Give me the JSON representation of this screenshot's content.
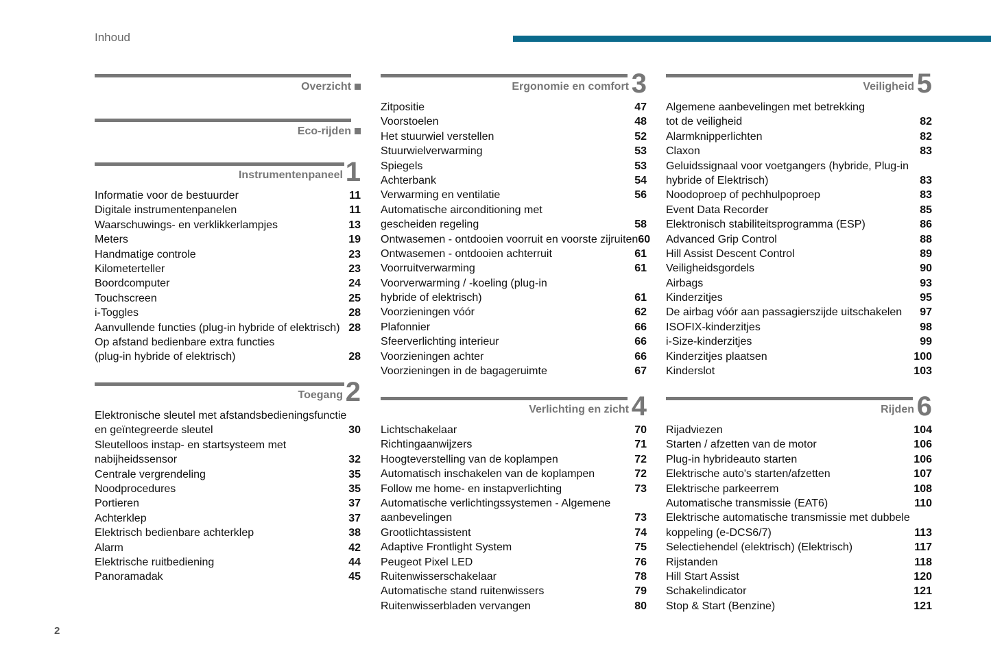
{
  "header": {
    "title": "Inhoud",
    "accent": "#0b6a8c"
  },
  "page_number": "2",
  "sections": [
    {
      "id": "overzicht",
      "title": "Overzicht",
      "number": "",
      "items": []
    },
    {
      "id": "eco",
      "title": "Eco-rijden",
      "number": "",
      "items": []
    },
    {
      "id": "instr",
      "title": "Instrumentenpaneel",
      "number": "1",
      "items": [
        {
          "text": "Informatie voor de bestuurder",
          "page": "11"
        },
        {
          "text": "Digitale instrumentenpanelen",
          "page": "11"
        },
        {
          "text": "Waarschuwings- en verklikkerlampjes",
          "page": "13"
        },
        {
          "text": "Meters",
          "page": "19"
        },
        {
          "text": "Handmatige controle",
          "page": "23"
        },
        {
          "text": "Kilometerteller",
          "page": "23"
        },
        {
          "text": "Boordcomputer",
          "page": "24"
        },
        {
          "text": "Touchscreen",
          "page": "25"
        },
        {
          "text": "i-Toggles",
          "page": "28"
        },
        {
          "text": "Aanvullende functies (plug-in hybride of elektrisch)",
          "page": "28"
        },
        {
          "text": "Op afstand bedienbare extra functies",
          "text2": "(plug-in hybride of elektrisch)",
          "page": "28"
        }
      ]
    },
    {
      "id": "toegang",
      "title": "Toegang",
      "number": "2",
      "items": [
        {
          "text": "Elektronische sleutel met afstandsbedieningsfunctie",
          "text2": "en geïntegreerde sleutel",
          "page": "30"
        },
        {
          "text": "Sleutelloos instap- en startsysteem met",
          "text2": "nabijheidssensor",
          "page": "32"
        },
        {
          "text": "Centrale vergrendeling",
          "page": "35"
        },
        {
          "text": "Noodprocedures",
          "page": "35"
        },
        {
          "text": "Portieren",
          "page": "37"
        },
        {
          "text": "Achterklep",
          "page": "37"
        },
        {
          "text": "Elektrisch bedienbare achterklep",
          "page": "38"
        },
        {
          "text": "Alarm",
          "page": "42"
        },
        {
          "text": "Elektrische ruitbediening",
          "page": "44"
        },
        {
          "text": "Panoramadak",
          "page": "45"
        }
      ]
    },
    {
      "id": "ergo",
      "title": "Ergonomie en comfort",
      "number": "3",
      "items": [
        {
          "text": "Zitpositie",
          "page": "47"
        },
        {
          "text": "Voorstoelen",
          "page": "48"
        },
        {
          "text": "Het stuurwiel verstellen",
          "page": "52"
        },
        {
          "text": "Stuurwielverwarming",
          "page": "53"
        },
        {
          "text": "Spiegels",
          "page": "53"
        },
        {
          "text": "Achterbank",
          "page": "54"
        },
        {
          "text": "Verwarming en ventilatie",
          "page": "56"
        },
        {
          "text": "Automatische airconditioning met",
          "text2": "gescheiden regeling",
          "page": "58"
        },
        {
          "text": "Ontwasemen - ontdooien voorruit en voorste zijruiten",
          "page": "60"
        },
        {
          "text": "Ontwasemen - ontdooien achterruit",
          "page": "61"
        },
        {
          "text": "Voorruitverwarming",
          "page": "61"
        },
        {
          "text": "Voorverwarming / -koeling (plug-in",
          "text2": "hybride of elektrisch)",
          "page": "61"
        },
        {
          "text": "Voorzieningen vóór",
          "page": "62"
        },
        {
          "text": "Plafonnier",
          "page": "66"
        },
        {
          "text": "Sfeerverlichting interieur",
          "page": "66"
        },
        {
          "text": "Voorzieningen achter",
          "page": "66"
        },
        {
          "text": "Voorzieningen in de bagageruimte",
          "page": "67"
        }
      ]
    },
    {
      "id": "verl",
      "title": "Verlichting en zicht",
      "number": "4",
      "items": [
        {
          "text": "Lichtschakelaar",
          "page": "70"
        },
        {
          "text": "Richtingaanwijzers",
          "page": "71"
        },
        {
          "text": "Hoogteverstelling van de koplampen",
          "page": "72"
        },
        {
          "text": "Automatisch inschakelen van de koplampen",
          "page": "72"
        },
        {
          "text": "Follow me home- en instapverlichting",
          "page": "73"
        },
        {
          "text": "Automatische verlichtingssystemen - Algemene",
          "text2": "aanbevelingen",
          "page": "73"
        },
        {
          "text": "Grootlichtassistent",
          "page": "74"
        },
        {
          "text": "Adaptive Frontlight System",
          "page": "75"
        },
        {
          "text": "Peugeot Pixel LED",
          "page": "76"
        },
        {
          "text": "Ruitenwisserschakelaar",
          "page": "78"
        },
        {
          "text": "Automatische stand ruitenwissers",
          "page": "79"
        },
        {
          "text": "Ruitenwisserbladen vervangen",
          "page": "80"
        }
      ]
    },
    {
      "id": "veil",
      "title": "Veiligheid",
      "number": "5",
      "items": [
        {
          "text": "Algemene aanbevelingen met betrekking",
          "text2": "tot de veiligheid",
          "page": "82"
        },
        {
          "text": "Alarmknipperlichten",
          "page": "82"
        },
        {
          "text": "Claxon",
          "page": "83"
        },
        {
          "text": "Geluidssignaal voor voetgangers (hybride, Plug-in",
          "text2": "hybride of Elektrisch)",
          "page": "83"
        },
        {
          "text": "Noodoproep of pechhulpoproep",
          "page": "83"
        },
        {
          "text": "Event Data Recorder",
          "page": "85"
        },
        {
          "text": "Elektronisch stabiliteitsprogramma (ESP)",
          "page": "86"
        },
        {
          "text": "Advanced Grip Control",
          "page": "88"
        },
        {
          "text": "Hill Assist Descent Control",
          "page": "89"
        },
        {
          "text": "Veiligheidsgordels",
          "page": "90"
        },
        {
          "text": "Airbags",
          "page": "93"
        },
        {
          "text": "Kinderzitjes",
          "page": "95"
        },
        {
          "text": "De airbag vóór aan passagierszijde uitschakelen",
          "page": "97"
        },
        {
          "text": "ISOFIX-kinderzitjes",
          "page": "98"
        },
        {
          "text": "i-Size-kinderzitjes",
          "page": "99"
        },
        {
          "text": "Kinderzitjes plaatsen",
          "page": "100"
        },
        {
          "text": "Kinderslot",
          "page": "103"
        }
      ]
    },
    {
      "id": "rijden",
      "title": "Rijden",
      "number": "6",
      "items": [
        {
          "text": "Rijadviezen",
          "page": "104"
        },
        {
          "text": "Starten / afzetten van de motor",
          "page": "106"
        },
        {
          "text": "Plug-in hybrideauto starten",
          "page": "106"
        },
        {
          "text": "Elektrische auto's starten/afzetten",
          "page": "107"
        },
        {
          "text": "Elektrische parkeerrem",
          "page": "108"
        },
        {
          "text": "Automatische transmissie (EAT6)",
          "page": "110"
        },
        {
          "text": "Elektrische automatische transmissie met dubbele",
          "text2": "koppeling (e-DCS6/7)",
          "page": "113"
        },
        {
          "text": "Selectiehendel (elektrisch) (Elektrisch)",
          "page": "117"
        },
        {
          "text": "Rijstanden",
          "page": "118"
        },
        {
          "text": "Hill Start Assist",
          "page": "120"
        },
        {
          "text": "Schakelindicator",
          "page": "121"
        },
        {
          "text": "Stop & Start (Benzine)",
          "page": "121"
        }
      ]
    }
  ]
}
